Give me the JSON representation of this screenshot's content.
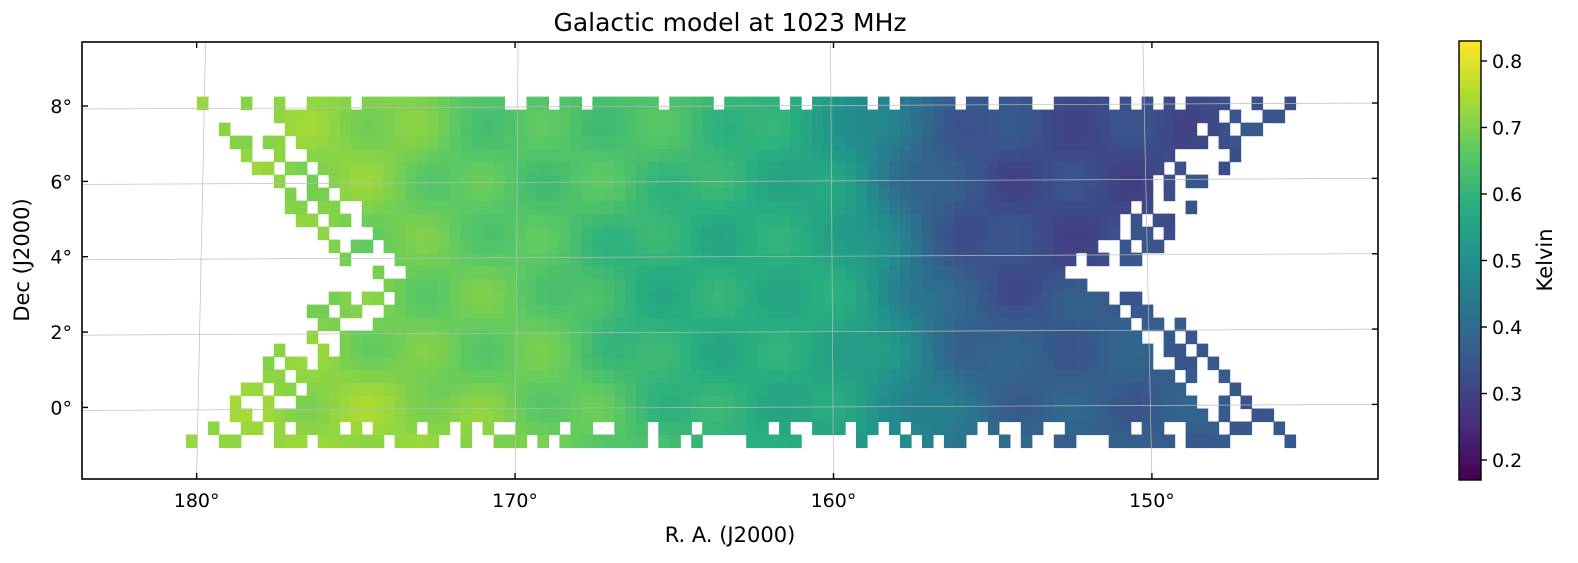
{
  "chart_data": {
    "type": "heatmap",
    "title": "Galactic model at 1023 MHz",
    "xlabel": "R. A. (J2000)",
    "ylabel": "Dec (J2000)",
    "colorbar_label": "Kelvin",
    "colormap": "viridis",
    "x_ticks": [
      {
        "value": 180,
        "label": "180°"
      },
      {
        "value": 170,
        "label": "170°"
      },
      {
        "value": 160,
        "label": "160°"
      },
      {
        "value": 150,
        "label": "150°"
      }
    ],
    "y_ticks": [
      {
        "value": 0,
        "label": "0°"
      },
      {
        "value": 2,
        "label": "2°"
      },
      {
        "value": 4,
        "label": "4°"
      },
      {
        "value": 6,
        "label": "6°"
      },
      {
        "value": 8,
        "label": "8°"
      }
    ],
    "colorbar_ticks": [
      {
        "value": 0.2,
        "label": "0.2"
      },
      {
        "value": 0.3,
        "label": "0.3"
      },
      {
        "value": 0.4,
        "label": "0.4"
      },
      {
        "value": 0.5,
        "label": "0.5"
      },
      {
        "value": 0.6,
        "label": "0.6"
      },
      {
        "value": 0.7,
        "label": "0.7"
      },
      {
        "value": 0.8,
        "label": "0.8"
      }
    ],
    "ra_range": [
      183.6,
      142.9
    ],
    "dec_range": [
      -1.9,
      9.7
    ],
    "value_range": [
      0.17,
      0.83
    ],
    "field_extent": {
      "ra": [
        180.5,
        145.2
      ],
      "dec": [
        -0.9,
        8.4
      ]
    },
    "notable_values": [
      {
        "ra": 176.5,
        "dec": 8.0,
        "kelvin": 0.78
      },
      {
        "ra": 173.5,
        "dec": -0.5,
        "kelvin": 0.8
      },
      {
        "ra": 172.0,
        "dec": 1.5,
        "kelvin": 0.74
      },
      {
        "ra": 168.5,
        "dec": 7.3,
        "kelvin": 0.7
      },
      {
        "ra": 163.5,
        "dec": 3.3,
        "kelvin": 0.62
      },
      {
        "ra": 152.3,
        "dec": 5.0,
        "kelvin": 0.25
      },
      {
        "ra": 149.5,
        "dec": 2.5,
        "kelvin": 0.33
      }
    ]
  }
}
